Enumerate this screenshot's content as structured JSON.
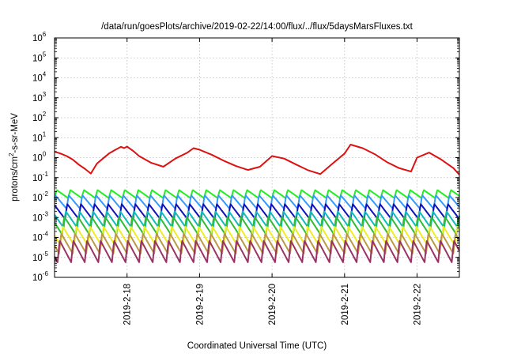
{
  "chart_data": {
    "type": "line",
    "title": "/data/run/goesPlots/archive/2019-02-22/14:00/flux/../flux/5daysMarsFluxes.txt",
    "xlabel": "Coordinated Universal Time (UTC)",
    "ylabel": {
      "base": "protons/cm",
      "sup": "2",
      "rest": "-s-sr-MeV"
    },
    "y_scale": "log",
    "ylim": [
      1e-06,
      1000000
    ],
    "xlim": [
      "2019-02-17 00:00",
      "2019-02-22 14:00"
    ],
    "grid": true,
    "legend": "none",
    "x_ticks": [
      "2019-2-18",
      "2019-2-19",
      "2019-2-20",
      "2019-2-21",
      "2019-2-22"
    ],
    "y_ticks": [
      {
        "exp": -6,
        "label": "-6"
      },
      {
        "exp": -5,
        "label": "-5"
      },
      {
        "exp": -4,
        "label": "-4"
      },
      {
        "exp": -3,
        "label": "-3"
      },
      {
        "exp": -2,
        "label": "-2"
      },
      {
        "exp": -1,
        "label": "-1"
      },
      {
        "exp": 0,
        "label": "0"
      },
      {
        "exp": 1,
        "label": "1"
      },
      {
        "exp": 2,
        "label": "2"
      },
      {
        "exp": 3,
        "label": "3"
      },
      {
        "exp": 4,
        "label": "4"
      },
      {
        "exp": 5,
        "label": "5"
      },
      {
        "exp": 6,
        "label": "6"
      }
    ],
    "series": [
      {
        "color": "#dd1111",
        "width": 2,
        "x": [
          "2019-02-17 00:00",
          "2019-02-17 02:00",
          "2019-02-17 04:00",
          "2019-02-17 06:00",
          "2019-02-17 08:00",
          "2019-02-17 10:00",
          "2019-02-17 12:00",
          "2019-02-17 14:00",
          "2019-02-17 16:00",
          "2019-02-17 18:00",
          "2019-02-17 20:00",
          "2019-02-17 22:00",
          "2019-02-17 23:00",
          "2019-02-18 00:00",
          "2019-02-18 02:00",
          "2019-02-18 04:00",
          "2019-02-18 08:00",
          "2019-02-18 12:00",
          "2019-02-18 16:00",
          "2019-02-18 20:00",
          "2019-02-18 22:00",
          "2019-02-19 00:00",
          "2019-02-19 04:00",
          "2019-02-19 08:00",
          "2019-02-19 12:00",
          "2019-02-19 16:00",
          "2019-02-19 20:00",
          "2019-02-20 00:00",
          "2019-02-20 04:00",
          "2019-02-20 08:00",
          "2019-02-20 12:00",
          "2019-02-20 16:00",
          "2019-02-20 20:00",
          "2019-02-21 00:00",
          "2019-02-21 02:00",
          "2019-02-21 06:00",
          "2019-02-21 10:00",
          "2019-02-21 14:00",
          "2019-02-21 18:00",
          "2019-02-21 22:00",
          "2019-02-22 00:00",
          "2019-02-22 04:00",
          "2019-02-22 08:00",
          "2019-02-22 12:00",
          "2019-02-22 14:00"
        ],
        "y": [
          2.0,
          1.6,
          1.2,
          0.8,
          0.45,
          0.28,
          0.16,
          0.5,
          0.9,
          1.6,
          2.4,
          3.5,
          3.0,
          3.6,
          2.2,
          1.2,
          0.55,
          0.35,
          0.9,
          1.8,
          3.0,
          2.5,
          1.4,
          0.7,
          0.38,
          0.24,
          0.35,
          1.2,
          0.9,
          0.45,
          0.23,
          0.15,
          0.5,
          1.6,
          4.5,
          3.0,
          1.5,
          0.6,
          0.3,
          0.2,
          1.0,
          1.8,
          0.8,
          0.3,
          0.14
        ]
      },
      {
        "color": "#22ee22",
        "width": 2,
        "osc": {
          "base": 0.015,
          "amp": 1.6,
          "period_h": 4.5,
          "phase": 0.0
        }
      },
      {
        "color": "#3399ff",
        "width": 2,
        "osc": {
          "base": 0.006,
          "amp": 2.2,
          "period_h": 4.5,
          "phase": 0.5
        }
      },
      {
        "color": "#1111bb",
        "width": 2,
        "osc": {
          "base": 0.002,
          "amp": 2.4,
          "period_h": 4.5,
          "phase": 1.0
        }
      },
      {
        "color": "#11bbbb",
        "width": 2,
        "osc": {
          "base": 0.0008,
          "amp": 2.6,
          "period_h": 4.5,
          "phase": 1.5
        }
      },
      {
        "color": "#33bb33",
        "width": 2,
        "osc": {
          "base": 0.0004,
          "amp": 2.8,
          "period_h": 4.5,
          "phase": 2.0
        }
      },
      {
        "color": "#eeee22",
        "width": 2,
        "osc": {
          "base": 0.00012,
          "amp": 3.0,
          "period_h": 4.5,
          "phase": 2.5
        }
      },
      {
        "color": "#bb9944",
        "width": 2,
        "osc": {
          "base": 5e-05,
          "amp": 3.2,
          "period_h": 4.5,
          "phase": 3.0
        }
      },
      {
        "color": "#993366",
        "width": 2,
        "osc": {
          "base": 2e-05,
          "amp": 3.5,
          "period_h": 4.5,
          "phase": 3.5
        }
      }
    ]
  }
}
